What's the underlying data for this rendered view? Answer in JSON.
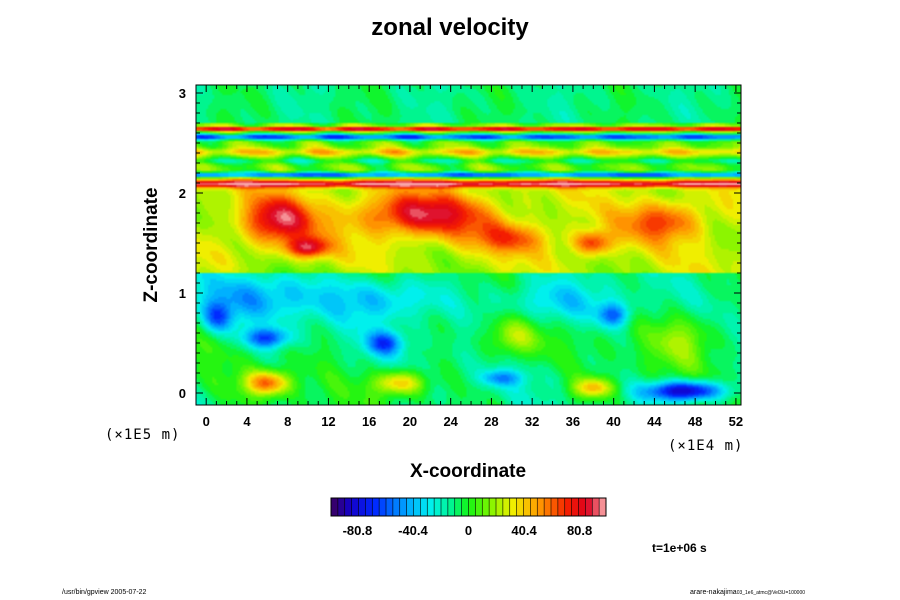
{
  "chart_data": {
    "type": "heatmap",
    "title": "zonal velocity",
    "xlabel": "X-coordinate",
    "ylabel": "Z-coordinate",
    "x_unit": "(×1E4 m)",
    "y_unit": "(×1E5 m)",
    "xlim": [
      -1,
      52.5
    ],
    "ylim": [
      -0.12,
      3.08
    ],
    "xticks": [
      0,
      4,
      8,
      12,
      16,
      20,
      24,
      28,
      32,
      36,
      40,
      44,
      48,
      52
    ],
    "yticks": [
      0,
      1,
      2,
      3
    ],
    "colorbar": {
      "min": -100,
      "max": 100,
      "ticks": [
        -80.8,
        -40.4,
        0,
        40.4,
        80.8
      ],
      "tick_labels": [
        "-80.8",
        "-40.4",
        "0",
        "40.4",
        "80.8"
      ],
      "levels": 40
    },
    "bands": [
      {
        "z": 2.64,
        "width": 0.02,
        "value": 80
      },
      {
        "z": 2.56,
        "width": 0.03,
        "value": -70
      },
      {
        "z": 2.18,
        "width": 0.025,
        "value": -85
      },
      {
        "z": 2.09,
        "width": 0.035,
        "value": 70
      },
      {
        "z": 2.41,
        "width": 0.04,
        "value": 28
      },
      {
        "z": 2.32,
        "width": 0.03,
        "value": -18
      }
    ],
    "blobs": [
      {
        "x": 21,
        "z": 1.78,
        "rx": 6.5,
        "rz": 0.22,
        "value": 62
      },
      {
        "x": 7,
        "z": 1.72,
        "rx": 3.5,
        "rz": 0.25,
        "value": 62
      },
      {
        "x": 10,
        "z": 1.45,
        "rx": 2,
        "rz": 0.1,
        "value": 58
      },
      {
        "x": 38,
        "z": 1.5,
        "rx": 2,
        "rz": 0.12,
        "value": 48
      },
      {
        "x": 45,
        "z": 1.72,
        "rx": 4,
        "rz": 0.2,
        "value": 42
      },
      {
        "x": 30,
        "z": 1.55,
        "rx": 4,
        "rz": 0.15,
        "value": 35
      },
      {
        "x": 5,
        "z": 0.95,
        "rx": 6,
        "rz": 0.25,
        "value": -32
      },
      {
        "x": 18,
        "z": 0.95,
        "rx": 6,
        "rz": 0.22,
        "value": -30
      },
      {
        "x": 34,
        "z": 0.9,
        "rx": 6,
        "rz": 0.22,
        "value": -28
      },
      {
        "x": 6,
        "z": 0.55,
        "rx": 2.2,
        "rz": 0.1,
        "value": -52
      },
      {
        "x": 17.5,
        "z": 0.5,
        "rx": 1.8,
        "rz": 0.12,
        "value": -48
      },
      {
        "x": 40,
        "z": 0.78,
        "rx": 1.5,
        "rz": 0.12,
        "value": -45
      },
      {
        "x": 47,
        "z": 0.02,
        "rx": 3.8,
        "rz": 0.1,
        "value": -85
      },
      {
        "x": 6,
        "z": 0.1,
        "rx": 2.2,
        "rz": 0.12,
        "value": 65
      },
      {
        "x": 19,
        "z": 0.1,
        "rx": 2.5,
        "rz": 0.12,
        "value": 52
      },
      {
        "x": 38,
        "z": 0.05,
        "rx": 2,
        "rz": 0.1,
        "value": 50
      },
      {
        "x": 30,
        "z": 0.55,
        "rx": 2.5,
        "rz": 0.2,
        "value": 30
      },
      {
        "x": 47,
        "z": 0.55,
        "rx": 3,
        "rz": 0.25,
        "value": 25
      },
      {
        "x": 1,
        "z": 0.75,
        "rx": 1.5,
        "rz": 0.15,
        "value": -40
      },
      {
        "x": 29,
        "z": 0.15,
        "rx": 2,
        "rz": 0.08,
        "value": -35
      }
    ]
  },
  "time_label": "t=1e+06 s",
  "footer_left": "/usr/bin/gpview 2005-07-22",
  "footer_right": "arare-nakajima",
  "footer_right_sub": "03_1e6_atmc@Vel3U=100000"
}
